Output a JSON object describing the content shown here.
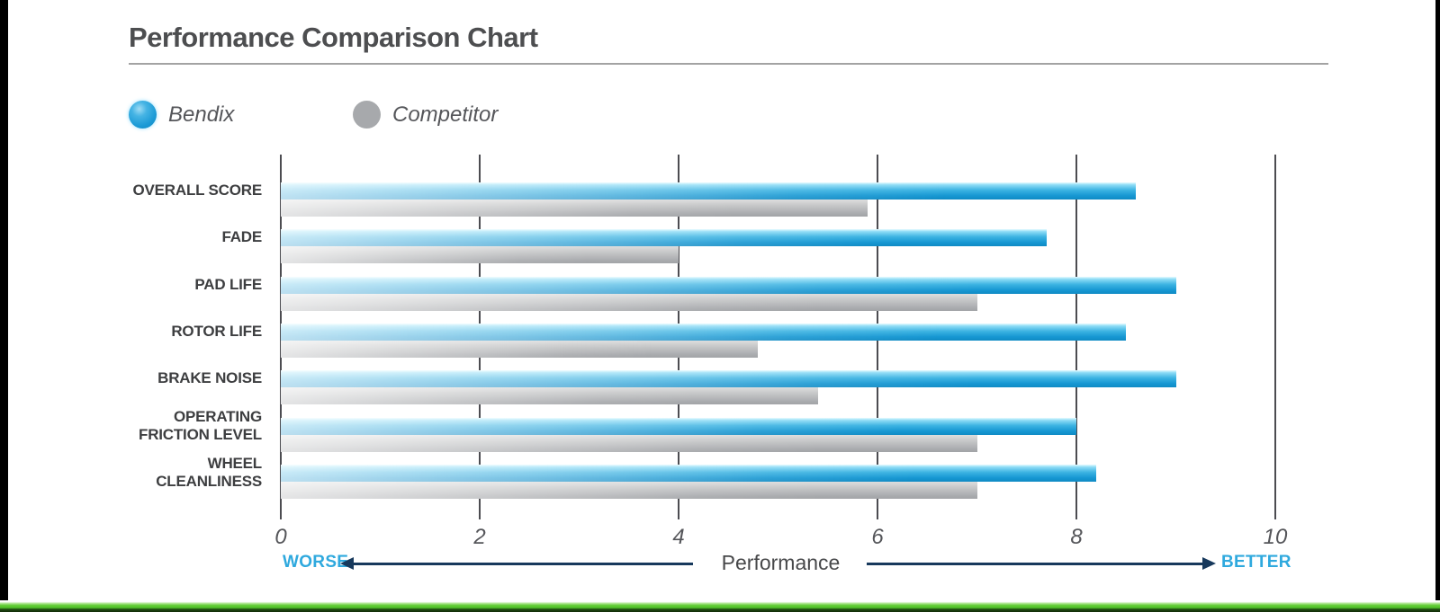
{
  "header": {
    "title": "Performance Comparison Chart"
  },
  "chart_data": {
    "type": "bar",
    "orientation": "horizontal",
    "title": "Performance Comparison Chart",
    "categories": [
      "OVERALL SCORE",
      "FADE",
      "PAD LIFE",
      "ROTOR LIFE",
      "BRAKE NOISE",
      "OPERATING FRICTION LEVEL",
      "WHEEL CLEANLINESS"
    ],
    "series": [
      {
        "name": "Bendix",
        "color": "#1796d2",
        "values": [
          8.6,
          7.7,
          9.0,
          8.5,
          9.0,
          8.0,
          8.2
        ]
      },
      {
        "name": "Competitor",
        "color": "#a8aaad",
        "values": [
          5.9,
          4.0,
          7.0,
          4.8,
          5.4,
          7.0,
          7.0
        ]
      }
    ],
    "xlabel": "Performance",
    "x_ticks": [
      0,
      2,
      4,
      6,
      8,
      10
    ],
    "xlim": [
      0,
      10
    ],
    "x_direction_labels": {
      "low": "WORSE",
      "high": "BETTER"
    },
    "grid": "vertical",
    "legend_position": "top-left",
    "colors": {
      "direction_label": "#2fa9de",
      "arrow": "#17395c",
      "gridline": "#2d2d32",
      "accent_green_strip": "#5ecb31"
    }
  }
}
